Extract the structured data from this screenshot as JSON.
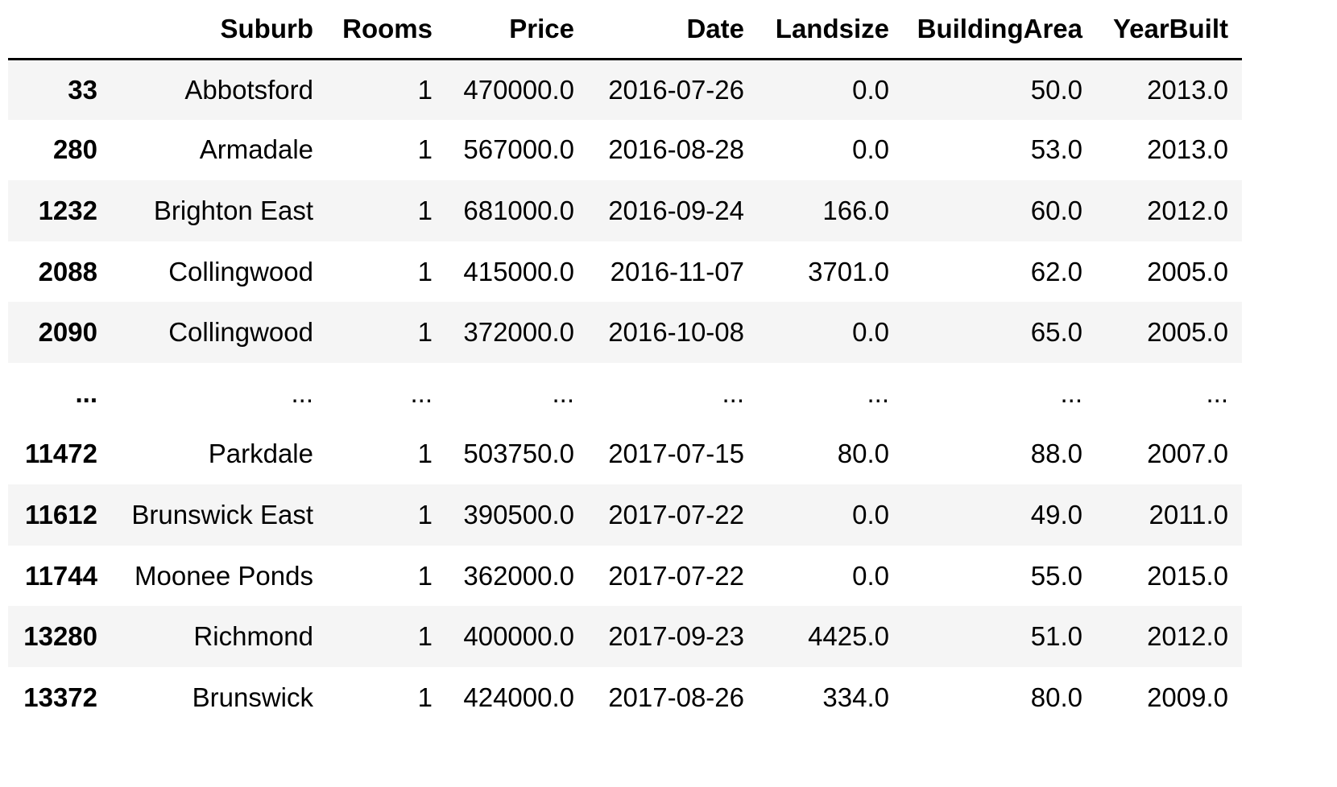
{
  "table": {
    "index_header": "",
    "columns": [
      "Suburb",
      "Rooms",
      "Price",
      "Date",
      "Landsize",
      "BuildingArea",
      "YearBuilt"
    ],
    "rows": [
      {
        "index": "33",
        "cells": [
          "Abbotsford",
          "1",
          "470000.0",
          "2016-07-26",
          "0.0",
          "50.0",
          "2013.0"
        ]
      },
      {
        "index": "280",
        "cells": [
          "Armadale",
          "1",
          "567000.0",
          "2016-08-28",
          "0.0",
          "53.0",
          "2013.0"
        ]
      },
      {
        "index": "1232",
        "cells": [
          "Brighton East",
          "1",
          "681000.0",
          "2016-09-24",
          "166.0",
          "60.0",
          "2012.0"
        ]
      },
      {
        "index": "2088",
        "cells": [
          "Collingwood",
          "1",
          "415000.0",
          "2016-11-07",
          "3701.0",
          "62.0",
          "2005.0"
        ]
      },
      {
        "index": "2090",
        "cells": [
          "Collingwood",
          "1",
          "372000.0",
          "2016-10-08",
          "0.0",
          "65.0",
          "2005.0"
        ]
      },
      {
        "index": "...",
        "cells": [
          "...",
          "...",
          "...",
          "...",
          "...",
          "...",
          "..."
        ]
      },
      {
        "index": "11472",
        "cells": [
          "Parkdale",
          "1",
          "503750.0",
          "2017-07-15",
          "80.0",
          "88.0",
          "2007.0"
        ]
      },
      {
        "index": "11612",
        "cells": [
          "Brunswick East",
          "1",
          "390500.0",
          "2017-07-22",
          "0.0",
          "49.0",
          "2011.0"
        ]
      },
      {
        "index": "11744",
        "cells": [
          "Moonee Ponds",
          "1",
          "362000.0",
          "2017-07-22",
          "0.0",
          "55.0",
          "2015.0"
        ]
      },
      {
        "index": "13280",
        "cells": [
          "Richmond",
          "1",
          "400000.0",
          "2017-09-23",
          "4425.0",
          "51.0",
          "2012.0"
        ]
      },
      {
        "index": "13372",
        "cells": [
          "Brunswick",
          "1",
          "424000.0",
          "2017-08-26",
          "334.0",
          "80.0",
          "2009.0"
        ]
      }
    ]
  },
  "colors": {
    "stripe": "#f5f5f5",
    "header_rule": "#000000",
    "text": "#000000"
  }
}
